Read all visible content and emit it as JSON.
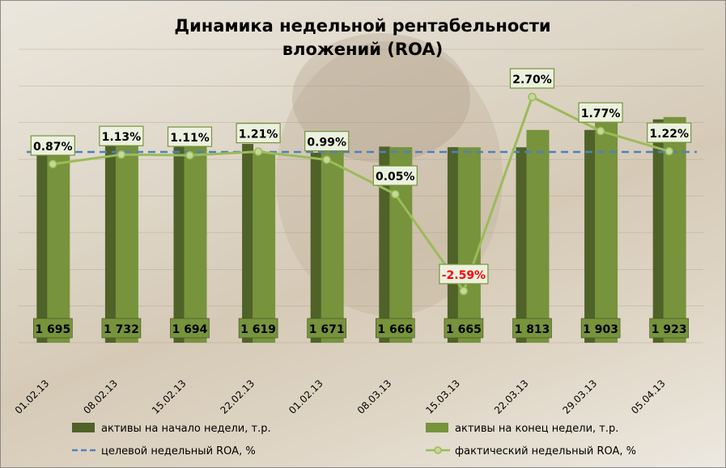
{
  "chart_data": {
    "type": "bar",
    "title": [
      "Динамика недельной рентабельности",
      "вложений (ROA)"
    ],
    "categories": [
      "01.02.13",
      "08.02.13",
      "15.02.13",
      "22.02.13",
      "01.02.13",
      "08.03.13",
      "15.03.13",
      "22.03.13",
      "29.03.13",
      "05.04.13"
    ],
    "series": [
      {
        "name": "активы на начало недели, т.р.",
        "kind": "bar",
        "color": "#4f6228",
        "values": [
          1657,
          1695,
          1732,
          1694,
          1619,
          1671,
          1666,
          1665,
          1813,
          1903
        ]
      },
      {
        "name": "активы на конец недели, т.р.",
        "kind": "bar",
        "color": "#77933c",
        "values": [
          1695,
          1732,
          1694,
          1619,
          1671,
          1666,
          1665,
          1813,
          1903,
          1923
        ],
        "value_labels": [
          "1 695",
          "1 732",
          "1 694",
          "1 619",
          "1 671",
          "1 666",
          "1 665",
          "1 813",
          "1 903",
          "1 923"
        ]
      },
      {
        "name": "целевой недельный ROA, %",
        "kind": "line",
        "style": "dashed",
        "color": "#4f81bd",
        "values": [
          1.2,
          1.2,
          1.2,
          1.2,
          1.2,
          1.2,
          1.2,
          1.2,
          1.2,
          1.2
        ]
      },
      {
        "name": "фактический недельный ROA, %",
        "kind": "line",
        "color": "#9bbb59",
        "marker": "circle",
        "values": [
          0.87,
          1.13,
          1.11,
          1.21,
          0.99,
          0.05,
          -2.59,
          2.7,
          1.77,
          1.22
        ],
        "value_labels": [
          "0.87%",
          "1.13%",
          "1.11%",
          "1.21%",
          "0.99%",
          "0.05%",
          "-2.59%",
          "2.70%",
          "1.77%",
          "1.22%"
        ]
      }
    ],
    "negative_label_color": "#ff0000",
    "label_box_fill": "#ebf1de",
    "label_box_border": "#77933c",
    "ylim_assets": [
      0,
      2500
    ],
    "ylim_roa": [
      -4,
      4
    ],
    "grid": true,
    "legend_position": "bottom"
  }
}
